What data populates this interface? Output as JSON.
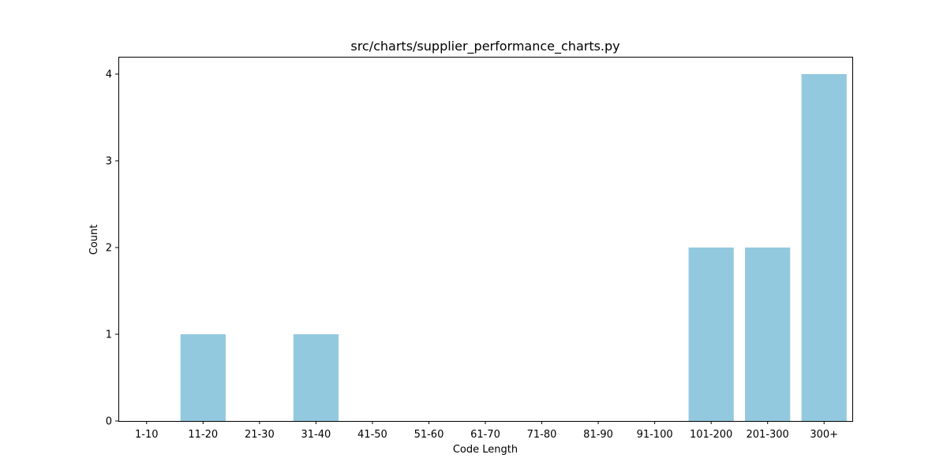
{
  "chart_data": {
    "type": "bar",
    "title": "src/charts/supplier_performance_charts.py",
    "xlabel": "Code Length",
    "ylabel": "Count",
    "categories": [
      "1-10",
      "11-20",
      "21-30",
      "31-40",
      "41-50",
      "51-60",
      "61-70",
      "71-80",
      "81-90",
      "91-100",
      "101-200",
      "201-300",
      "300+"
    ],
    "values": [
      0,
      1,
      0,
      1,
      0,
      0,
      0,
      0,
      0,
      0,
      2,
      2,
      4
    ],
    "yticks": [
      0,
      1,
      2,
      3,
      4
    ],
    "ylim": [
      0,
      4.2
    ],
    "grid": false,
    "bar_color": "#93c9df"
  }
}
